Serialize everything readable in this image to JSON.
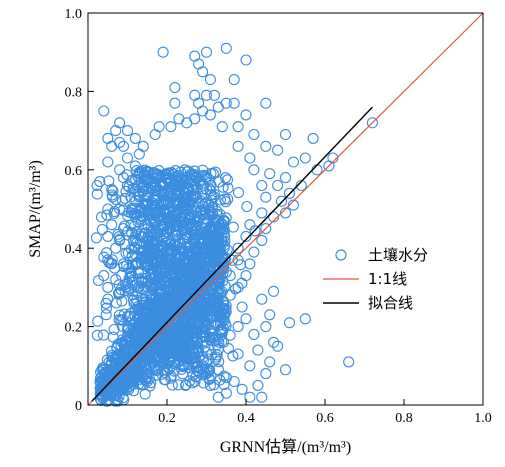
{
  "chart_data": {
    "type": "scatter",
    "xlabel": "GRNN估算/(m³/m³)",
    "ylabel": "SMAP/(m³/m³)",
    "xlim": [
      0,
      1.0
    ],
    "ylim": [
      0,
      1.0
    ],
    "xticks": [
      "0.2",
      "0.4",
      "0.6",
      "0.8",
      "1.0"
    ],
    "yticks": [
      "0",
      "0.2",
      "0.4",
      "0.6",
      "0.8",
      "1.0"
    ],
    "grid": false,
    "legend_position": "center-right",
    "colors": {
      "points": "#3b8de0",
      "identity": "#e05a3a",
      "fit": "#000000"
    },
    "series": [
      {
        "name": "土壤水分",
        "kind": "points"
      },
      {
        "name": "1:1线",
        "kind": "line",
        "x": [
          0,
          1.0
        ],
        "y": [
          0,
          1.0
        ]
      },
      {
        "name": "拟合线",
        "kind": "line",
        "x": [
          0.01,
          0.72
        ],
        "y": [
          0.01,
          0.76
        ]
      }
    ],
    "points": [
      [
        0.19,
        0.9
      ],
      [
        0.27,
        0.89
      ],
      [
        0.35,
        0.91
      ],
      [
        0.3,
        0.9
      ],
      [
        0.4,
        0.88
      ],
      [
        0.28,
        0.87
      ],
      [
        0.29,
        0.85
      ],
      [
        0.31,
        0.83
      ],
      [
        0.37,
        0.83
      ],
      [
        0.22,
        0.81
      ],
      [
        0.27,
        0.79
      ],
      [
        0.3,
        0.79
      ],
      [
        0.32,
        0.79
      ],
      [
        0.22,
        0.77
      ],
      [
        0.35,
        0.77
      ],
      [
        0.28,
        0.77
      ],
      [
        0.29,
        0.75
      ],
      [
        0.33,
        0.76
      ],
      [
        0.37,
        0.77
      ],
      [
        0.45,
        0.77
      ],
      [
        0.04,
        0.75
      ],
      [
        0.31,
        0.74
      ],
      [
        0.4,
        0.74
      ],
      [
        0.23,
        0.73
      ],
      [
        0.27,
        0.73
      ],
      [
        0.72,
        0.72
      ],
      [
        0.08,
        0.72
      ],
      [
        0.18,
        0.71
      ],
      [
        0.21,
        0.71
      ],
      [
        0.25,
        0.72
      ],
      [
        0.07,
        0.7
      ],
      [
        0.1,
        0.7
      ],
      [
        0.34,
        0.71
      ],
      [
        0.38,
        0.71
      ],
      [
        0.05,
        0.68
      ],
      [
        0.08,
        0.67
      ],
      [
        0.12,
        0.68
      ],
      [
        0.17,
        0.69
      ],
      [
        0.42,
        0.69
      ],
      [
        0.5,
        0.69
      ],
      [
        0.57,
        0.68
      ],
      [
        0.06,
        0.66
      ],
      [
        0.09,
        0.66
      ],
      [
        0.14,
        0.66
      ],
      [
        0.38,
        0.66
      ],
      [
        0.45,
        0.66
      ],
      [
        0.48,
        0.65
      ],
      [
        0.55,
        0.63
      ],
      [
        0.62,
        0.63
      ],
      [
        0.13,
        0.64
      ],
      [
        0.05,
        0.62
      ],
      [
        0.1,
        0.63
      ],
      [
        0.41,
        0.63
      ],
      [
        0.52,
        0.62
      ],
      [
        0.58,
        0.6
      ],
      [
        0.61,
        0.61
      ],
      [
        0.08,
        0.6
      ],
      [
        0.12,
        0.61
      ],
      [
        0.42,
        0.6
      ],
      [
        0.46,
        0.59
      ],
      [
        0.5,
        0.58
      ],
      [
        0.54,
        0.56
      ],
      [
        0.03,
        0.57
      ],
      [
        0.09,
        0.58
      ],
      [
        0.44,
        0.56
      ],
      [
        0.48,
        0.56
      ],
      [
        0.51,
        0.54
      ],
      [
        0.06,
        0.55
      ],
      [
        0.1,
        0.56
      ],
      [
        0.45,
        0.53
      ],
      [
        0.49,
        0.52
      ],
      [
        0.52,
        0.51
      ],
      [
        0.05,
        0.5
      ],
      [
        0.08,
        0.5
      ],
      [
        0.11,
        0.49
      ],
      [
        0.44,
        0.49
      ],
      [
        0.47,
        0.48
      ],
      [
        0.5,
        0.49
      ],
      [
        0.06,
        0.46
      ],
      [
        0.09,
        0.45
      ],
      [
        0.41,
        0.46
      ],
      [
        0.45,
        0.45
      ],
      [
        0.05,
        0.43
      ],
      [
        0.08,
        0.42
      ],
      [
        0.4,
        0.43
      ],
      [
        0.44,
        0.42
      ],
      [
        0.07,
        0.4
      ],
      [
        0.38,
        0.4
      ],
      [
        0.42,
        0.39
      ],
      [
        0.05,
        0.37
      ],
      [
        0.09,
        0.36
      ],
      [
        0.38,
        0.37
      ],
      [
        0.41,
        0.36
      ],
      [
        0.04,
        0.33
      ],
      [
        0.07,
        0.32
      ],
      [
        0.36,
        0.33
      ],
      [
        0.4,
        0.33
      ],
      [
        0.05,
        0.3
      ],
      [
        0.38,
        0.3
      ],
      [
        0.47,
        0.29
      ],
      [
        0.36,
        0.28
      ],
      [
        0.44,
        0.27
      ],
      [
        0.05,
        0.27
      ],
      [
        0.39,
        0.25
      ],
      [
        0.46,
        0.23
      ],
      [
        0.4,
        0.22
      ],
      [
        0.55,
        0.22
      ],
      [
        0.51,
        0.21
      ],
      [
        0.38,
        0.2
      ],
      [
        0.45,
        0.2
      ],
      [
        0.42,
        0.18
      ],
      [
        0.47,
        0.16
      ],
      [
        0.48,
        0.15
      ],
      [
        0.43,
        0.14
      ],
      [
        0.38,
        0.13
      ],
      [
        0.46,
        0.11
      ],
      [
        0.41,
        0.1
      ],
      [
        0.66,
        0.11
      ],
      [
        0.5,
        0.09
      ],
      [
        0.45,
        0.08
      ],
      [
        0.37,
        0.06
      ],
      [
        0.43,
        0.05
      ],
      [
        0.39,
        0.04
      ],
      [
        0.35,
        0.03
      ],
      [
        0.41,
        0.02
      ],
      [
        0.44,
        0.02
      ],
      [
        0.33,
        0.02
      ],
      [
        0.31,
        0.05
      ],
      [
        0.35,
        0.07
      ]
    ]
  }
}
